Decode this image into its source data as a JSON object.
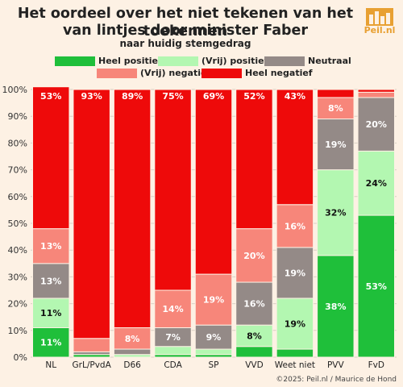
{
  "title_line1": "Het oordeel over het niet tekenen van het toekennen",
  "title_line2": "van lintjes door minister Faber",
  "subtitle": "naar huidig stemgedrag",
  "logo_text": "Peil.nl",
  "footer": "©2025: Peil.nl / Maurice de Hond",
  "colors": {
    "heel_positief": "#1fbf3a",
    "vrij_positief": "#b3f7b1",
    "neutraal": "#948a87",
    "vrij_negatief": "#f7867a",
    "heel_negatief": "#ee0a0a",
    "background": "#fdf1e4",
    "logo": "#e8a032"
  },
  "chart_data": {
    "type": "bar",
    "stacked": true,
    "title": "Het oordeel over het niet tekenen van het toekennen van lintjes door minister Faber",
    "subtitle": "naar huidig stemgedrag",
    "categories": [
      "NL",
      "GrL/PvdA",
      "D66",
      "CDA",
      "SP",
      "VVD",
      "Weet niet",
      "PVV",
      "FvD"
    ],
    "series": [
      {
        "name": "Heel positief",
        "values": [
          11,
          1,
          0,
          1,
          1,
          4,
          3,
          38,
          53
        ],
        "labels": [
          "11%",
          "",
          "",
          "",
          "",
          "",
          "",
          "38%",
          "53%"
        ]
      },
      {
        "name": "(Vrij) positief",
        "values": [
          11,
          0,
          1,
          3,
          2,
          8,
          19,
          32,
          24
        ],
        "labels": [
          "11%",
          "",
          "",
          "",
          "",
          "8%",
          "19%",
          "32%",
          "24%"
        ]
      },
      {
        "name": "Neutraal",
        "values": [
          13,
          1,
          2,
          7,
          9,
          16,
          19,
          19,
          20
        ],
        "labels": [
          "13%",
          "",
          "",
          "7%",
          "9%",
          "16%",
          "19%",
          "19%",
          "20%"
        ]
      },
      {
        "name": "(Vrij) negatief",
        "values": [
          13,
          5,
          8,
          14,
          19,
          20,
          16,
          8,
          2
        ],
        "labels": [
          "13%",
          "",
          "8%",
          "14%",
          "19%",
          "20%",
          "16%",
          "8%",
          ""
        ]
      },
      {
        "name": "Heel negatief",
        "values": [
          53,
          93,
          89,
          75,
          69,
          52,
          43,
          3,
          1
        ],
        "labels": [
          "53%",
          "93%",
          "89%",
          "75%",
          "69%",
          "52%",
          "43%",
          "",
          ""
        ]
      }
    ],
    "yticks": [
      "0%",
      "10%",
      "20%",
      "30%",
      "40%",
      "50%",
      "60%",
      "70%",
      "80%",
      "90%",
      "100%"
    ],
    "ylim": [
      0,
      100
    ],
    "xlabel": "",
    "ylabel": "",
    "legend_position": "top"
  }
}
